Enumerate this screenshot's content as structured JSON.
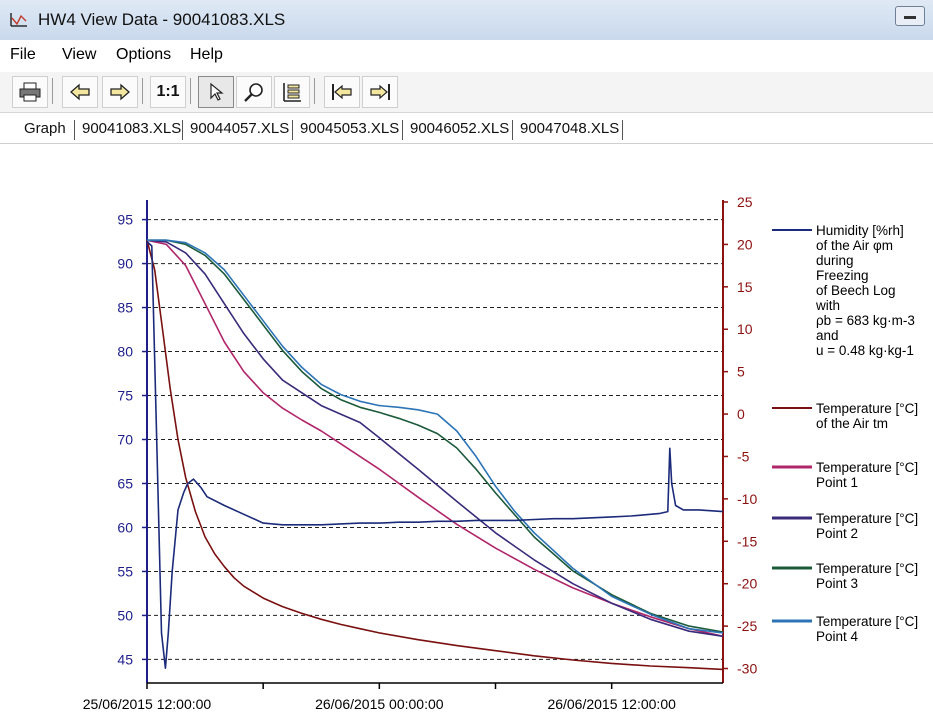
{
  "window": {
    "title": "HW4 View Data - 90041083.XLS"
  },
  "menu": [
    {
      "label": "File"
    },
    {
      "label": "View"
    },
    {
      "label": "Options"
    },
    {
      "label": "Help"
    }
  ],
  "toolbar": {
    "print_icon": "printer-icon",
    "back_icon": "arrow-left-icon",
    "forward_icon": "arrow-right-icon",
    "zoom_label": "1:1",
    "pointer_icon": "pointer-icon",
    "magnifier_icon": "magnifier-icon",
    "legend_icon": "legend-icon",
    "first_icon": "jump-first-icon",
    "last_icon": "jump-last-icon"
  },
  "tabs": [
    {
      "label": "Graph",
      "active": true
    },
    {
      "label": "90041083.XLS"
    },
    {
      "label": "90044057.XLS"
    },
    {
      "label": "90045053.XLS"
    },
    {
      "label": "90046052.XLS"
    },
    {
      "label": "90047048.XLS"
    }
  ],
  "chart_data": {
    "type": "line",
    "x_axis": {
      "type": "datetime",
      "labels": [
        "25/06/2015 12:00:00",
        "26/06/2015 00:00:00",
        "26/06/2015 12:00:00"
      ],
      "range": [
        "25/06/2015 12:00:00",
        "26/06/2015 17:45:00"
      ]
    },
    "y_left": {
      "range": [
        43,
        97
      ],
      "ticks": [
        45,
        50,
        55,
        60,
        65,
        70,
        75,
        80,
        85,
        90,
        95
      ]
    },
    "y_right": {
      "range": [
        -31,
        25
      ],
      "ticks": [
        -30,
        -25,
        -20,
        -15,
        -10,
        -5,
        0,
        5,
        10,
        15,
        20,
        25
      ]
    },
    "grid": "horizontal dashed",
    "legend_position": "right",
    "series": [
      {
        "name": "Humidity [%rh] of the Air φm during Freezing of Beech Log with ρb = 683 kg·m-3 and u = 0.48 kg·kg-1",
        "axis": "left",
        "color": "#1c2a7a",
        "x": [
          0,
          0.25,
          0.5,
          0.75,
          0.95,
          1.1,
          1.3,
          1.6,
          1.9,
          2.1,
          2.4,
          2.8,
          3.1,
          4,
          5,
          6,
          7,
          8,
          9,
          10,
          11,
          12,
          13,
          14,
          15,
          16,
          17,
          18,
          19,
          20,
          21,
          22,
          23,
          24,
          25,
          26,
          26.5,
          26.9,
          27,
          27.1,
          27.3,
          27.7,
          28.5,
          29.75
        ],
        "y": [
          92.5,
          92,
          70,
          48,
          44,
          48,
          55,
          62,
          64,
          65,
          65.5,
          64.5,
          63.5,
          62.5,
          61.5,
          60.5,
          60.3,
          60.3,
          60.3,
          60.4,
          60.5,
          60.5,
          60.6,
          60.6,
          60.7,
          60.7,
          60.8,
          60.8,
          60.8,
          60.9,
          61,
          61,
          61.1,
          61.2,
          61.3,
          61.5,
          61.6,
          61.8,
          69,
          65,
          62.5,
          62,
          62,
          61.8
        ]
      },
      {
        "name": "Temperature [°C] of the Air tm",
        "axis": "right",
        "color": "#7a1010",
        "x": [
          0,
          0.4,
          0.8,
          1.2,
          1.6,
          2,
          2.5,
          3,
          3.5,
          4,
          4.5,
          5,
          6,
          7,
          8,
          9,
          10,
          11,
          12,
          14,
          16,
          18,
          20,
          22,
          24,
          26,
          28,
          29.75
        ],
        "y": [
          20.5,
          17,
          10,
          3,
          -3,
          -7.5,
          -11.5,
          -14.5,
          -16.5,
          -18,
          -19.3,
          -20.3,
          -21.7,
          -22.7,
          -23.5,
          -24.2,
          -24.8,
          -25.3,
          -25.8,
          -26.6,
          -27.3,
          -27.9,
          -28.5,
          -29,
          -29.4,
          -29.7,
          -29.9,
          -30.1
        ]
      },
      {
        "name": "Temperature [°C] Point 1",
        "axis": "right",
        "color": "#b0266a",
        "x": [
          0,
          1,
          2,
          3,
          4,
          5,
          6,
          7,
          8,
          9,
          10,
          12,
          14,
          16,
          18,
          20,
          22,
          24,
          26,
          28,
          29.75
        ],
        "y": [
          20.5,
          20,
          17.5,
          13,
          8.5,
          5,
          2.5,
          0.7,
          -0.7,
          -2,
          -3.5,
          -6.5,
          -9.8,
          -13,
          -15.8,
          -18.3,
          -20.5,
          -22.3,
          -23.9,
          -25.3,
          -26.2
        ]
      },
      {
        "name": "Temperature [°C] Point 2",
        "axis": "right",
        "color": "#3a2a7a",
        "x": [
          0,
          1,
          2,
          3,
          4,
          5,
          6,
          7,
          8,
          9,
          10,
          11,
          12,
          14,
          16,
          18,
          20,
          22,
          24,
          26,
          28,
          29.75
        ],
        "y": [
          20.5,
          20.3,
          19,
          16.5,
          13,
          9.5,
          6.5,
          4,
          2.5,
          1,
          0,
          -1,
          -2.8,
          -6.5,
          -10.3,
          -14,
          -17.2,
          -20,
          -22.3,
          -24.2,
          -25.6,
          -26.2
        ]
      },
      {
        "name": "Temperature [°C] Point 3",
        "axis": "right",
        "color": "#1b5a3a",
        "x": [
          0,
          1,
          2,
          3,
          4,
          5,
          6,
          7,
          8,
          9,
          10,
          11,
          12,
          13,
          14,
          15,
          16,
          17,
          18,
          20,
          22,
          24,
          26,
          28,
          29.75
        ],
        "y": [
          20.5,
          20.5,
          20,
          18.7,
          16.5,
          13.5,
          10.5,
          7.5,
          5,
          3,
          1.7,
          0.8,
          0.2,
          -0.5,
          -1.3,
          -2.3,
          -4,
          -6.5,
          -9.3,
          -14.5,
          -18.5,
          -21.3,
          -23.5,
          -25,
          -25.7
        ]
      },
      {
        "name": "Temperature [°C] Point 4",
        "axis": "right",
        "color": "#2c74b6",
        "x": [
          0,
          1,
          2,
          3,
          4,
          5,
          6,
          7,
          8,
          9,
          10,
          11,
          12,
          13,
          14,
          15,
          16,
          17,
          18,
          19,
          20,
          22,
          24,
          26,
          28,
          29.75
        ],
        "y": [
          20.5,
          20.5,
          20.2,
          19,
          17,
          14,
          11,
          8,
          5.5,
          3.5,
          2.3,
          1.5,
          1,
          0.8,
          0.5,
          0,
          -2,
          -5,
          -8.5,
          -11.5,
          -14,
          -18.2,
          -21.5,
          -23.6,
          -25.3,
          -25.8
        ]
      }
    ]
  }
}
